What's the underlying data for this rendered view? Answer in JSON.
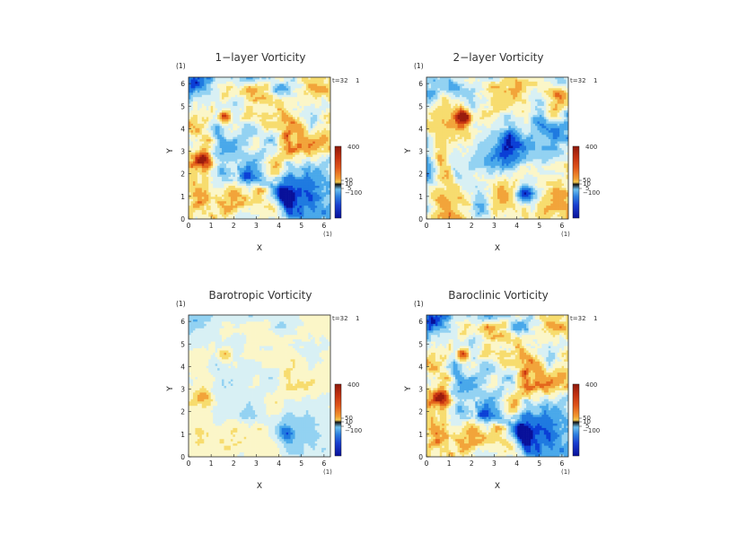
{
  "chart_data": [
    {
      "type": "heatmap",
      "title": "1−layer Vorticity",
      "xlabel": "X",
      "ylabel": "Y",
      "unit": "(1)",
      "time_label": "t=32",
      "time_suffix": "1",
      "xlim": [
        0,
        6.283
      ],
      "ylim": [
        0,
        6.283
      ],
      "xticks": [
        0,
        1,
        2,
        3,
        4,
        5,
        6
      ],
      "yticks": [
        0,
        1,
        2,
        3,
        4,
        5,
        6
      ],
      "colorbar": {
        "labels": [
          "400",
          "50",
          "10",
          "5",
          "−100"
        ],
        "label_values": [
          400,
          50,
          10,
          5,
          -100
        ]
      },
      "variant": 0
    },
    {
      "type": "heatmap",
      "title": "2−layer Vorticity",
      "xlabel": "X",
      "ylabel": "Y",
      "unit": "(1)",
      "time_label": "t=32",
      "time_suffix": "1",
      "xlim": [
        0,
        6.283
      ],
      "ylim": [
        0,
        6.283
      ],
      "xticks": [
        0,
        1,
        2,
        3,
        4,
        5,
        6
      ],
      "yticks": [
        0,
        1,
        2,
        3,
        4,
        5,
        6
      ],
      "colorbar": {
        "labels": [
          "400",
          "50",
          "10",
          "5",
          "−100"
        ],
        "label_values": [
          400,
          50,
          10,
          5,
          -100
        ]
      },
      "variant": 1
    },
    {
      "type": "heatmap",
      "title": "Barotropic Vorticity",
      "xlabel": "X",
      "ylabel": "Y",
      "unit": "(1)",
      "time_label": "t=32",
      "time_suffix": "1",
      "xlim": [
        0,
        6.283
      ],
      "ylim": [
        0,
        6.283
      ],
      "xticks": [
        0,
        1,
        2,
        3,
        4,
        5,
        6
      ],
      "yticks": [
        0,
        1,
        2,
        3,
        4,
        5,
        6
      ],
      "colorbar": {
        "labels": [
          "400",
          "50",
          "10",
          "5",
          "−100"
        ],
        "label_values": [
          400,
          50,
          10,
          5,
          -100
        ]
      },
      "variant": 2
    },
    {
      "type": "heatmap",
      "title": "Baroclinic Vorticity",
      "xlabel": "X",
      "ylabel": "Y",
      "unit": "(1)",
      "time_label": "t=32",
      "time_suffix": "1",
      "xlim": [
        0,
        6.283
      ],
      "ylim": [
        0,
        6.283
      ],
      "xticks": [
        0,
        1,
        2,
        3,
        4,
        5,
        6
      ],
      "yticks": [
        0,
        1,
        2,
        3,
        4,
        5,
        6
      ],
      "colorbar": {
        "labels": [
          "400",
          "50",
          "10",
          "5",
          "−100"
        ],
        "label_values": [
          400,
          50,
          10,
          5,
          -100
        ]
      },
      "variant": 3
    }
  ],
  "colormap": [
    "#08109a",
    "#0b3fd6",
    "#1f7ae0",
    "#49a8ea",
    "#93d2f2",
    "#d8f0f4",
    "#fbf6c8",
    "#f7dc6e",
    "#f2a43a",
    "#e4671c",
    "#c73512",
    "#9a1c0e"
  ]
}
